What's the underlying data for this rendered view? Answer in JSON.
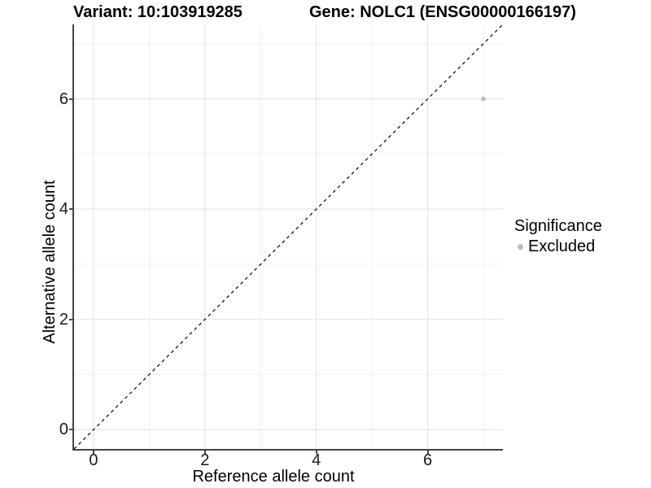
{
  "chart_data": {
    "type": "scatter",
    "title_left": "Variant: 10:103919285",
    "title_right": "Gene: NOLC1 (ENSG00000166197)",
    "xlabel": "Reference allele count",
    "ylabel": "Alternative allele count",
    "xlim": [
      -0.35,
      7.35
    ],
    "ylim": [
      -0.35,
      7.35
    ],
    "major_ticks": [
      0,
      2,
      4,
      6
    ],
    "minor_gridlines": [
      1,
      3,
      5,
      7
    ],
    "grid": true,
    "identity_line": {
      "style": "dashed",
      "from": [
        -0.35,
        -0.35
      ],
      "to": [
        7.35,
        7.35
      ],
      "color": "#000000"
    },
    "points": [
      {
        "x": 7,
        "y": 6,
        "significance": "Excluded",
        "color": "#bcbcbc"
      }
    ],
    "legend": {
      "title": "Significance",
      "position": "right",
      "entries": [
        {
          "label": "Excluded",
          "color": "#bcbcbc"
        }
      ]
    },
    "colors": {
      "major_grid": "#e6e6e6",
      "minor_grid": "#f0f0f0",
      "axis_line": "#444444",
      "background": "#ffffff"
    }
  }
}
